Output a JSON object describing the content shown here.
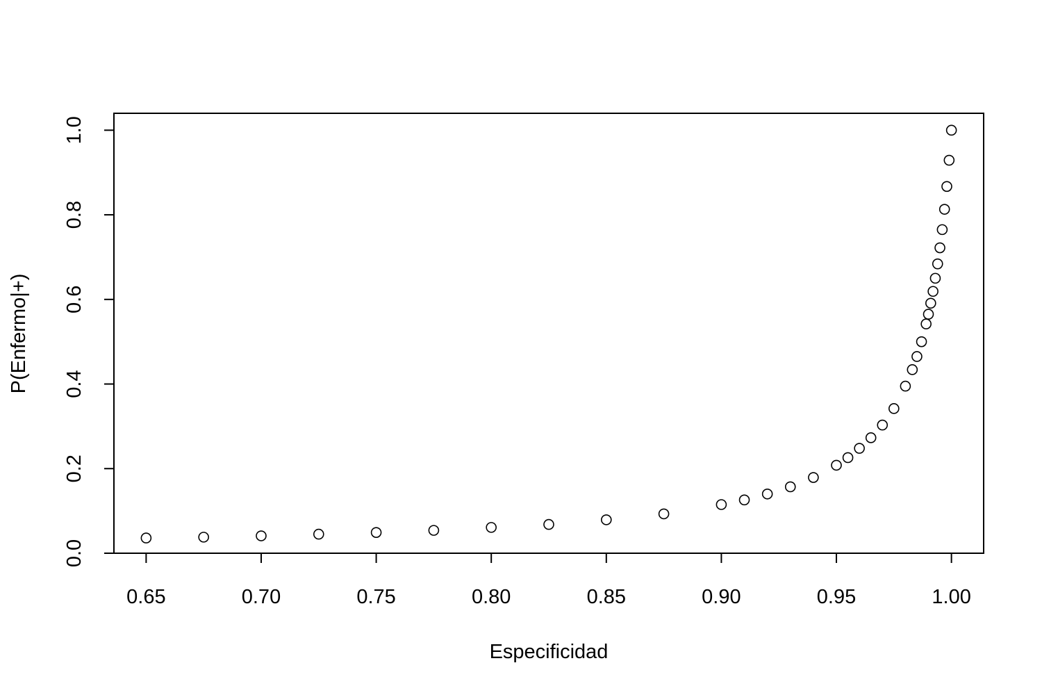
{
  "chart_data": {
    "type": "scatter",
    "title": "",
    "xlabel": "Especificidad",
    "ylabel": "P(Enfermo|+)",
    "xlim": [
      0.636,
      1.014
    ],
    "ylim": [
      0.0,
      1.04
    ],
    "x_ticks": [
      0.65,
      0.7,
      0.75,
      0.8,
      0.85,
      0.9,
      0.95,
      1.0
    ],
    "x_tick_labels": [
      "0.65",
      "0.70",
      "0.75",
      "0.80",
      "0.85",
      "0.90",
      "0.95",
      "1.00"
    ],
    "y_ticks": [
      0.0,
      0.2,
      0.4,
      0.6,
      0.8,
      1.0
    ],
    "y_tick_labels": [
      "0.0",
      "0.2",
      "0.4",
      "0.6",
      "0.8",
      "1.0"
    ],
    "grid": false,
    "legend": "none",
    "marker": "open-circle",
    "colors": {
      "points": "#000000",
      "axes": "#000000",
      "background": "#ffffff"
    },
    "series": [
      {
        "x": [
          0.65,
          0.675,
          0.7,
          0.725,
          0.75,
          0.775,
          0.8,
          0.825,
          0.85,
          0.875,
          0.9,
          0.91,
          0.92,
          0.93,
          0.94,
          0.95,
          0.955,
          0.96,
          0.965,
          0.97,
          0.975,
          0.98,
          0.983,
          0.985,
          0.987,
          0.989,
          0.99,
          0.991,
          0.992,
          0.993,
          0.994,
          0.995,
          0.996,
          0.997,
          0.998,
          0.999,
          1.0
        ],
        "y": [
          0.036,
          0.038,
          0.041,
          0.045,
          0.049,
          0.054,
          0.061,
          0.068,
          0.079,
          0.093,
          0.115,
          0.126,
          0.14,
          0.157,
          0.179,
          0.208,
          0.226,
          0.248,
          0.273,
          0.303,
          0.342,
          0.395,
          0.434,
          0.465,
          0.5,
          0.542,
          0.565,
          0.591,
          0.619,
          0.65,
          0.684,
          0.722,
          0.765,
          0.813,
          0.867,
          0.929,
          1.0
        ]
      }
    ]
  }
}
